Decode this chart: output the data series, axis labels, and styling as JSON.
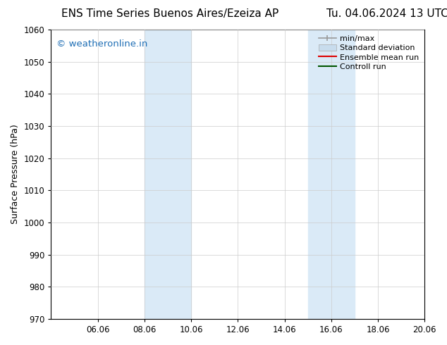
{
  "title_left": "ENS Time Series Buenos Aires/Ezeiza AP",
  "title_right": "Tu. 04.06.2024 13 UTC",
  "ylabel": "Surface Pressure (hPa)",
  "ylim": [
    970,
    1060
  ],
  "yticks": [
    970,
    980,
    990,
    1000,
    1010,
    1020,
    1030,
    1040,
    1050,
    1060
  ],
  "xtick_labels": [
    "06.06",
    "08.06",
    "10.06",
    "12.06",
    "14.06",
    "16.06",
    "18.06",
    "20.06"
  ],
  "xtick_positions": [
    2,
    4,
    6,
    8,
    10,
    12,
    14,
    16
  ],
  "xlim": [
    0,
    16
  ],
  "shaded_bands": [
    {
      "x_start": 4,
      "x_end": 6
    },
    {
      "x_start": 11,
      "x_end": 13
    }
  ],
  "shaded_color": "#daeaf7",
  "watermark_text": "© weatheronline.in",
  "watermark_color": "#1e6eb5",
  "watermark_fontsize": 9.5,
  "legend_items": [
    {
      "label": "min/max",
      "color": "#999999",
      "lw": 1.2,
      "style": "solid"
    },
    {
      "label": "Standard deviation",
      "color": "#c8dced",
      "lw": 6,
      "style": "solid"
    },
    {
      "label": "Ensemble mean run",
      "color": "#dd0000",
      "lw": 1.5,
      "style": "solid"
    },
    {
      "label": "Controll run",
      "color": "#005500",
      "lw": 1.5,
      "style": "solid"
    }
  ],
  "bg_color": "#ffffff",
  "grid_color": "#cccccc",
  "title_fontsize": 11,
  "axis_label_fontsize": 9,
  "tick_fontsize": 8.5,
  "legend_fontsize": 8
}
